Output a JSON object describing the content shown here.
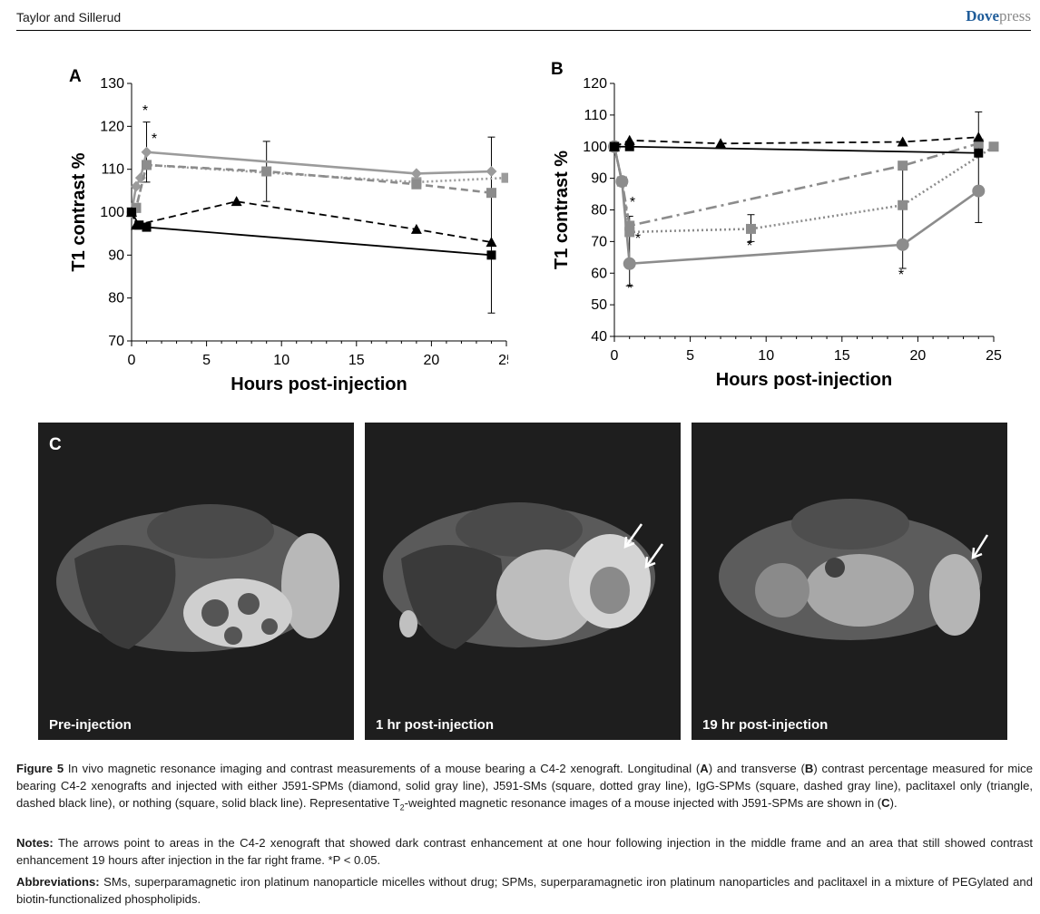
{
  "header": {
    "authors": "Taylor and Sillerud",
    "journal_bold": "Dove",
    "journal_light": "press"
  },
  "panels": {
    "a_label": "A",
    "b_label": "B",
    "c_label": "C"
  },
  "chart_data": [
    {
      "type": "line",
      "panel": "A",
      "xlabel": "Hours post-injection",
      "ylabel": "T1 contrast %",
      "xlim": [
        0,
        25
      ],
      "ylim": [
        70,
        130
      ],
      "xticks": [
        "0",
        "5",
        "10",
        "15",
        "20",
        "25"
      ],
      "yticks": [
        "70",
        "80",
        "90",
        "100",
        "110",
        "120",
        "130"
      ],
      "series": [
        {
          "marker": "diamond",
          "line": "solid",
          "color": "#9b9b9b",
          "x": [
            0,
            0.3,
            0.6,
            1,
            19,
            24
          ],
          "y": [
            100,
            106,
            108,
            114,
            109,
            109.5
          ]
        },
        {
          "marker": "square",
          "line": "dotted",
          "color": "#9b9b9b",
          "x": [
            0,
            0.3,
            1,
            19,
            25
          ],
          "y": [
            100,
            101,
            111,
            107,
            108
          ]
        },
        {
          "marker": "square",
          "line": "dashed",
          "color": "#8c8c8c",
          "x": [
            0,
            0.3,
            1,
            9,
            19,
            24
          ],
          "y": [
            100,
            101,
            111,
            109.5,
            106.5,
            104.5
          ]
        },
        {
          "marker": "triangle",
          "line": "dashed",
          "color": "#000000",
          "x": [
            0,
            0.3,
            7,
            19,
            24
          ],
          "y": [
            100,
            97,
            102.5,
            96,
            93
          ]
        },
        {
          "marker": "square",
          "line": "solid",
          "color": "#000000",
          "x": [
            0,
            0.5,
            1,
            24
          ],
          "y": [
            100,
            97,
            96.5,
            90
          ]
        }
      ],
      "error_bars": [
        {
          "x": 1,
          "low": 107,
          "high": 121
        },
        {
          "x": 9,
          "low": 102.5,
          "high": 116.5
        },
        {
          "x": 24,
          "low": 76.5,
          "high": 117.5
        }
      ],
      "annotations": [
        "*",
        "*"
      ]
    },
    {
      "type": "line",
      "panel": "B",
      "xlabel": "Hours post-injection",
      "ylabel": "T1 contrast %",
      "xlim": [
        0,
        25
      ],
      "ylim": [
        40,
        120
      ],
      "xticks": [
        "0",
        "5",
        "10",
        "15",
        "20",
        "25"
      ],
      "yticks": [
        "40",
        "50",
        "60",
        "70",
        "80",
        "90",
        "100",
        "110",
        "120"
      ],
      "series": [
        {
          "marker": "circle",
          "line": "solid",
          "color": "#8c8c8c",
          "x": [
            0,
            0.5,
            1,
            19,
            24
          ],
          "y": [
            100,
            89,
            63,
            69,
            86
          ]
        },
        {
          "marker": "square",
          "line": "dotted",
          "color": "#8c8c8c",
          "x": [
            0,
            0.5,
            1,
            9,
            19,
            25
          ],
          "y": [
            100,
            89,
            73,
            74,
            81.5,
            100
          ]
        },
        {
          "marker": "square",
          "line": "dashdot",
          "color": "#8c8c8c",
          "x": [
            0,
            0.5,
            1,
            19,
            24
          ],
          "y": [
            100,
            89,
            75,
            94,
            101
          ]
        },
        {
          "marker": "triangle",
          "line": "dashed",
          "color": "#000000",
          "x": [
            0,
            1,
            7,
            19,
            24
          ],
          "y": [
            100,
            102,
            101,
            101.5,
            103
          ]
        },
        {
          "marker": "square",
          "line": "solid",
          "color": "#000000",
          "x": [
            0,
            1,
            24
          ],
          "y": [
            100,
            100,
            98
          ]
        }
      ],
      "error_bars": [
        {
          "x": 1,
          "low": 56,
          "high": 78
        },
        {
          "x": 9,
          "low": 70,
          "high": 78.5
        },
        {
          "x": 19,
          "low": 61.5,
          "high": 94
        },
        {
          "x": 24,
          "low": 76,
          "high": 111
        }
      ],
      "annotations": [
        "*",
        "*",
        "*",
        "*",
        "*"
      ]
    }
  ],
  "images": [
    {
      "label": "Pre-injection"
    },
    {
      "label": "1 hr post-injection"
    },
    {
      "label": "19 hr post-injection"
    }
  ],
  "caption": {
    "fig_label": "Figure 5",
    "p1": "In vivo magnetic resonance imaging and contrast measurements of a mouse bearing a C4-2 xenograft. Longitudinal (",
    "p1_A": "A",
    "p2": ") and transverse (",
    "p2_B": "B",
    "p3": ") contrast percentage measured for mice bearing C4-2 xenografts and injected with either J591-SPMs (diamond, solid gray line), J591-SMs (square, dotted gray line), IgG-SPMs (square, dashed gray line), paclitaxel only (triangle, dashed black line), or nothing (square, solid black line). Representative T",
    "p3_sub": "2",
    "p4": "-weighted magnetic resonance images of a mouse injected with J591-SPMs are shown in (",
    "p4_C": "C",
    "p5": ").",
    "notes_label": "Notes:",
    "notes": "The arrows point to areas in the C4-2 xenograft that showed dark contrast enhancement at one hour following injection in the middle frame and an area that still showed contrast enhancement 19 hours after injection in the far right frame. *P < 0.05.",
    "abbr_label": "Abbreviations:",
    "abbr": "SMs, superparamagnetic iron platinum nanoparticle micelles without drug; SPMs, superparamagnetic iron platinum nanoparticles and paclitaxel in a mixture of PEGylated and biotin-functionalized phospholipids."
  }
}
